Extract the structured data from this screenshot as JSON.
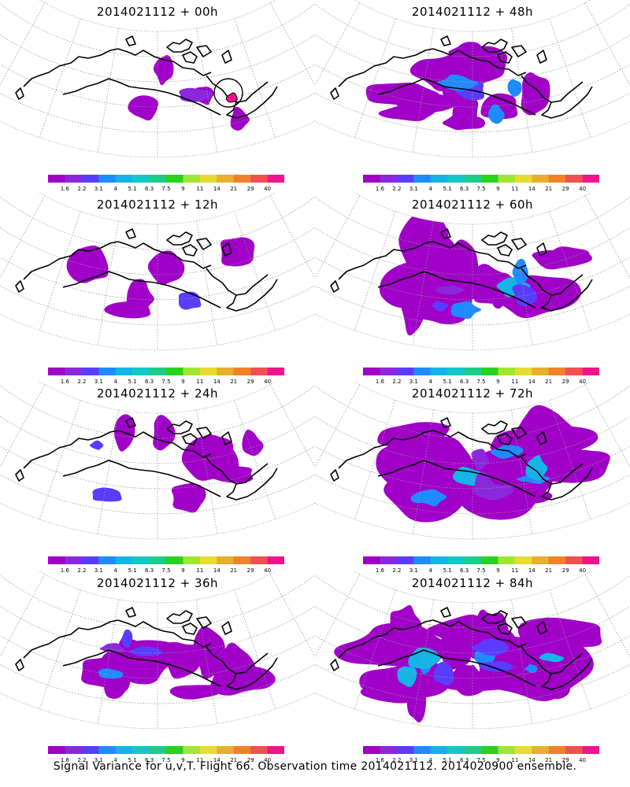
{
  "panels": [
    {
      "id": "p00",
      "title": "2014021112 + 00h",
      "coverage": 0.05,
      "marker_circle": true
    },
    {
      "id": "p48",
      "title": "2014021112 + 48h",
      "coverage": 0.35,
      "marker_circle": false
    },
    {
      "id": "p12",
      "title": "2014021112 + 12h",
      "coverage": 0.1,
      "marker_circle": false
    },
    {
      "id": "p60",
      "title": "2014021112 + 60h",
      "coverage": 0.5,
      "marker_circle": false
    },
    {
      "id": "p24",
      "title": "2014021112 + 24h",
      "coverage": 0.2,
      "marker_circle": false
    },
    {
      "id": "p72",
      "title": "2014021112 + 72h",
      "coverage": 0.65,
      "marker_circle": false
    },
    {
      "id": "p36",
      "title": "2014021112 + 36h",
      "coverage": 0.3,
      "marker_circle": false
    },
    {
      "id": "p84",
      "title": "2014021112 + 84h",
      "coverage": 0.75,
      "marker_circle": false
    }
  ],
  "colorbar": {
    "labels": [
      "1.6",
      "2.2",
      "3.1",
      "4",
      "5.1",
      "6.3",
      "7.5",
      "9",
      "11",
      "14",
      "21",
      "29",
      "40"
    ],
    "colors": [
      "#a000c8",
      "#8c28dc",
      "#5a3cff",
      "#1e8cff",
      "#14b4e6",
      "#14c8c8",
      "#1ecc8a",
      "#28d21e",
      "#a0e632",
      "#e6dc32",
      "#e6af2d",
      "#f08228",
      "#f05050",
      "#f0148c"
    ]
  },
  "footer": "Signal Variance for u,v,T. Flight 66. Observation time 2014021112. 2014020900 ensemble."
}
